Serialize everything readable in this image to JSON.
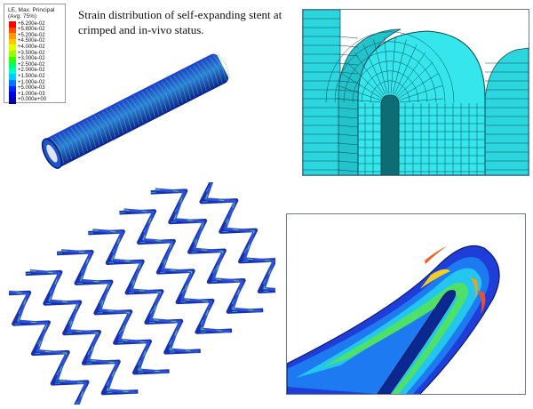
{
  "legend": {
    "title_line1": "LE, Max. Principal",
    "title_line2": "(Avg: 75%)",
    "entries": [
      {
        "label": "+6.200e-02",
        "color": "#ff0000"
      },
      {
        "label": "+5.800e-02",
        "color": "#ff4c00"
      },
      {
        "label": "+5.200e-02",
        "color": "#ff9900"
      },
      {
        "label": "+4.500e-02",
        "color": "#ffcc00"
      },
      {
        "label": "+4.000e-02",
        "color": "#e6ff00"
      },
      {
        "label": "+3.500e-02",
        "color": "#99ff00"
      },
      {
        "label": "+3.000e-02",
        "color": "#33ff00"
      },
      {
        "label": "+2.500e-02",
        "color": "#00ff66"
      },
      {
        "label": "+2.000e-02",
        "color": "#00ffcc"
      },
      {
        "label": "+1.500e-02",
        "color": "#00ccff"
      },
      {
        "label": "+1.000e-02",
        "color": "#0077ff"
      },
      {
        "label": "+5.000e-03",
        "color": "#0022ff"
      },
      {
        "label": "+1.000e-03",
        "color": "#0000dd"
      },
      {
        "label": "+0.000e+00",
        "color": "#0000a0"
      }
    ]
  },
  "caption": {
    "line1": "Strain distribution of self-expanding stent at",
    "line2": "crimped and in-vivo status."
  },
  "colors": {
    "mesh_fill": "#2fe0e6",
    "mesh_line": "#0b4b55",
    "stent_dark_blue": "#1a2fb0",
    "stent_cyan": "#20c8e0",
    "stent_green": "#6be04a"
  }
}
